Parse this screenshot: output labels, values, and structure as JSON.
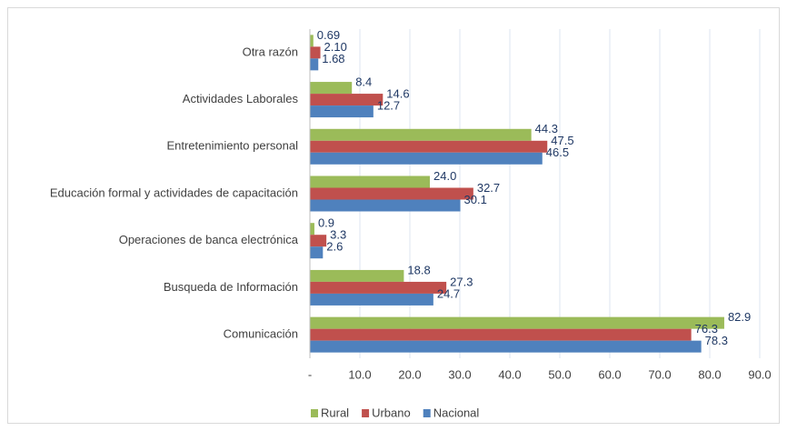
{
  "chart_data": {
    "type": "bar",
    "orientation": "horizontal",
    "categories": [
      "Otra razón",
      "Actividades Laborales",
      "Entretenimiento personal",
      "Educación formal y actividades de capacitación",
      "Operaciones de banca electrónica",
      "Busqueda de Información",
      "Comunicación"
    ],
    "series": [
      {
        "name": "Rural",
        "color": "#9bbb59",
        "values": [
          0.69,
          8.4,
          44.3,
          24.0,
          0.9,
          18.8,
          82.9
        ],
        "value_labels": [
          "0.69",
          "8.4",
          "44.3",
          "24.0",
          "0.9",
          "18.8",
          "82.9"
        ]
      },
      {
        "name": "Urbano",
        "color": "#c0504d",
        "values": [
          2.1,
          14.6,
          47.5,
          32.7,
          3.3,
          27.3,
          76.3
        ],
        "value_labels": [
          "2.10",
          "14.6",
          "47.5",
          "32.7",
          "3.3",
          "27.3",
          "76.3"
        ]
      },
      {
        "name": "Nacional",
        "color": "#4f81bd",
        "values": [
          1.68,
          12.7,
          46.5,
          30.1,
          2.6,
          24.7,
          78.3
        ],
        "value_labels": [
          "1.68",
          "12.7",
          "46.5",
          "30.1",
          "2.6",
          "24.7",
          "78.3"
        ]
      }
    ],
    "xlim": [
      0,
      90
    ],
    "xticks": [
      {
        "value": 0,
        "label": "-"
      },
      {
        "value": 10,
        "label": "10.0"
      },
      {
        "value": 20,
        "label": "20.0"
      },
      {
        "value": 30,
        "label": "30.0"
      },
      {
        "value": 40,
        "label": "40.0"
      },
      {
        "value": 50,
        "label": "50.0"
      },
      {
        "value": 60,
        "label": "60.0"
      },
      {
        "value": 70,
        "label": "70.0"
      },
      {
        "value": 80,
        "label": "80.0"
      },
      {
        "value": 90,
        "label": "90.0"
      }
    ],
    "grid": true,
    "legend": "bottom"
  }
}
